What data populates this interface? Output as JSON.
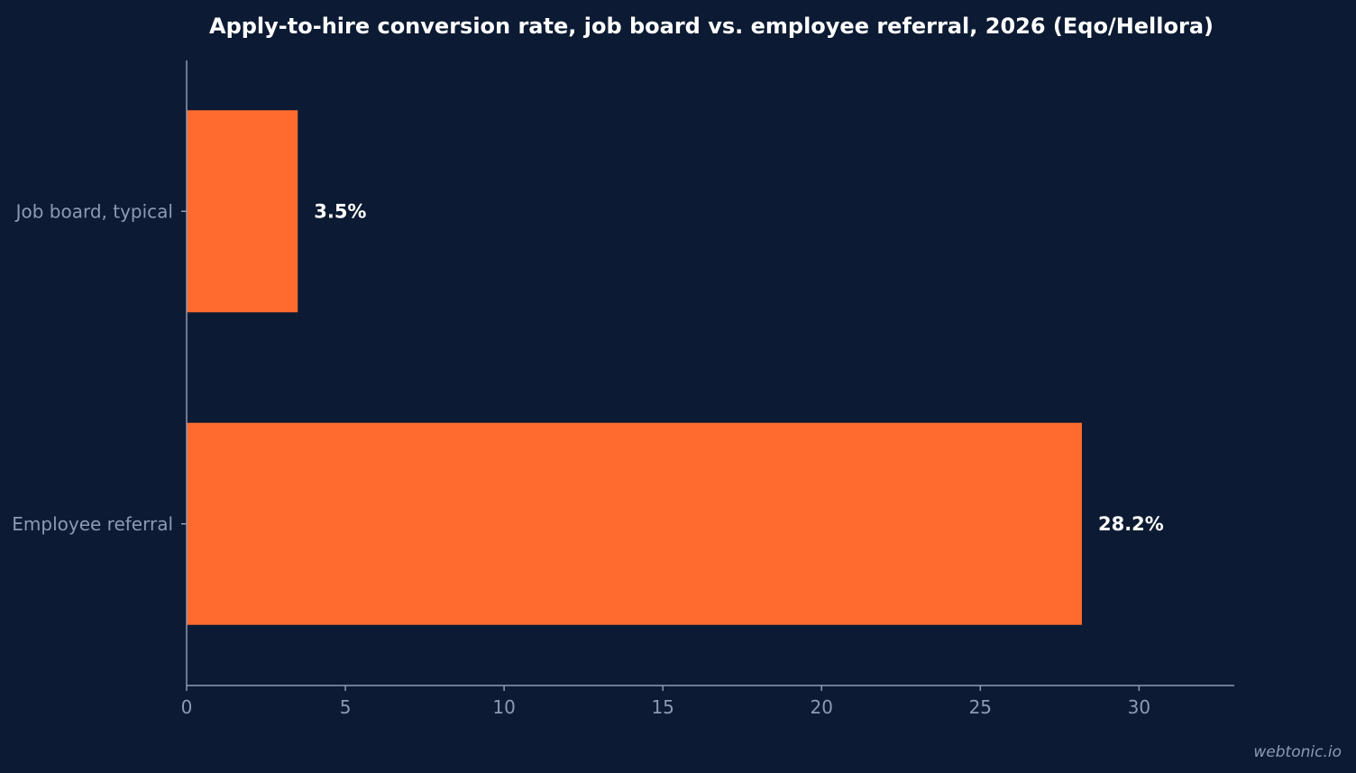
{
  "chart_data": {
    "type": "bar",
    "orientation": "horizontal",
    "title": "Apply-to-hire conversion rate, job board vs. employee referral, 2026 (Eqo/Hellora)",
    "categories": [
      "Job board, typical",
      "Employee referral"
    ],
    "values": [
      3.5,
      28.2
    ],
    "value_labels": [
      "3.5%",
      "28.2%"
    ],
    "xlabel": "",
    "ylabel": "",
    "xlim": [
      0,
      33
    ],
    "xticks": [
      0,
      5,
      10,
      15,
      20,
      25,
      30
    ],
    "grid": false,
    "legend": "none",
    "colors": {
      "background": "#0c1b33",
      "bar": "#ff6b2e",
      "axis": "#8d9ab3",
      "text": "#ffffff"
    }
  },
  "watermark": "webtonic.io"
}
